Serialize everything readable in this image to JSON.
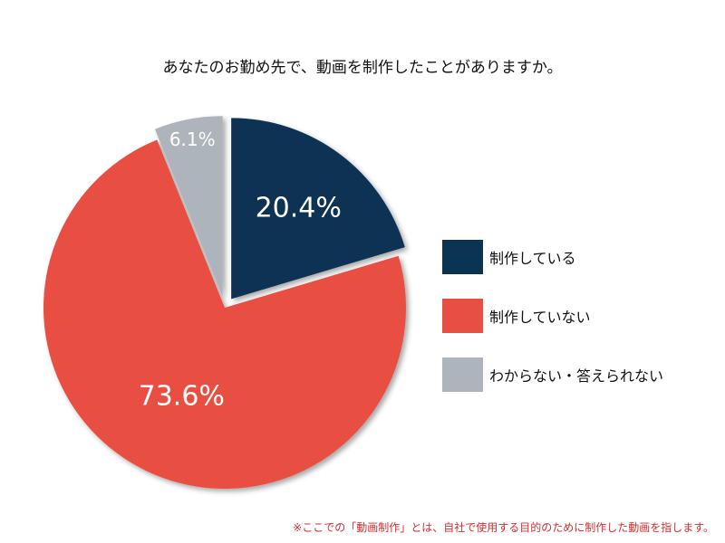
{
  "chart_data": {
    "type": "pie",
    "title": "あなたのお勤め先で、動画を制作したことがありますか。",
    "categories": [
      "制作している",
      "制作していない",
      "わからない・答えられない"
    ],
    "values": [
      20.4,
      73.6,
      6.1
    ],
    "value_labels": [
      "20.4%",
      "73.6%",
      "6.1%"
    ],
    "colors": [
      "#0b3352",
      "#e84f43",
      "#aeb4bc"
    ],
    "legend_position": "right",
    "footnote": "※ここでの「動画制作」とは、自社で使用する目的のために制作した動画を指します。"
  }
}
